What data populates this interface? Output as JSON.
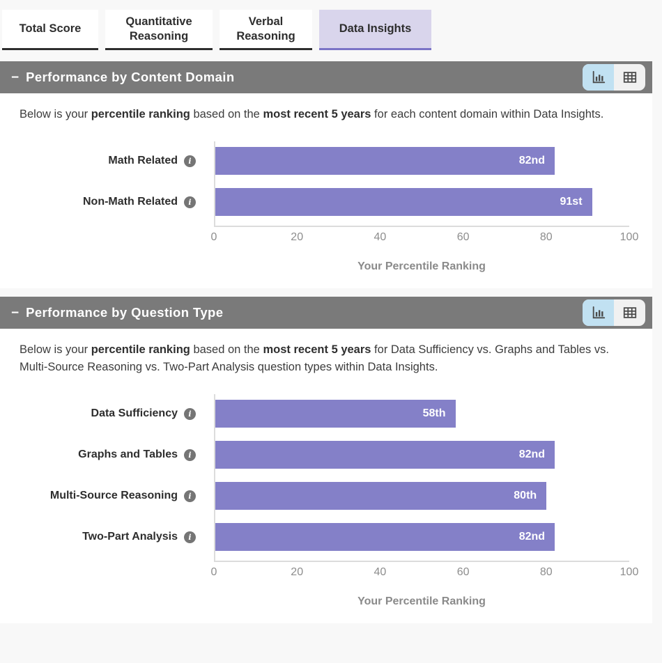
{
  "tabs": {
    "items": [
      {
        "label": "Total Score",
        "active": false
      },
      {
        "label": "Quantitative Reasoning",
        "active": false
      },
      {
        "label": "Verbal Reasoning",
        "active": false
      },
      {
        "label": "Data Insights",
        "active": true
      }
    ],
    "active_bg_color": "#d9d5ec",
    "active_border_color": "#7b74c6"
  },
  "sections": [
    {
      "collapse": "−",
      "title": "Performance by Content Domain",
      "intro": [
        {
          "text": "Below is your ",
          "bold": false
        },
        {
          "text": "percentile ranking",
          "bold": true
        },
        {
          "text": " based on the ",
          "bold": false
        },
        {
          "text": "most recent 5 years",
          "bold": true
        },
        {
          "text": " for each content domain within Data Insights.",
          "bold": false
        }
      ],
      "view_toggle": {
        "chart_view_active": true,
        "table_view_active": false
      }
    },
    {
      "collapse": "−",
      "title": "Performance by Question Type",
      "intro": [
        {
          "text": "Below is your ",
          "bold": false
        },
        {
          "text": "percentile ranking",
          "bold": true
        },
        {
          "text": " based on the ",
          "bold": false
        },
        {
          "text": "most recent 5 years",
          "bold": true
        },
        {
          "text": " for Data Sufficiency vs. Graphs and Tables vs. Multi-Source Reasoning vs. Two-Part Analysis question types within Data Insights.",
          "bold": false
        }
      ],
      "view_toggle": {
        "chart_view_active": true,
        "table_view_active": false
      }
    }
  ],
  "chart_data": [
    {
      "type": "bar",
      "orientation": "horizontal",
      "title": "Performance by Content Domain",
      "categories": [
        "Math Related",
        "Non-Math Related"
      ],
      "values": [
        82,
        91
      ],
      "value_labels": [
        "82nd",
        "91st"
      ],
      "xlabel": "Your Percentile Ranking",
      "xlim": [
        0,
        100
      ],
      "xticks": [
        0,
        20,
        40,
        60,
        80,
        100
      ],
      "bar_color": "#8480c8",
      "grid": false,
      "legend": false
    },
    {
      "type": "bar",
      "orientation": "horizontal",
      "title": "Performance by Question Type",
      "categories": [
        "Data Sufficiency",
        "Graphs and Tables",
        "Multi-Source Reasoning",
        "Two-Part Analysis"
      ],
      "values": [
        58,
        82,
        80,
        82
      ],
      "value_labels": [
        "58th",
        "82nd",
        "80th",
        "82nd"
      ],
      "xlabel": "Your Percentile Ranking",
      "xlim": [
        0,
        100
      ],
      "xticks": [
        0,
        20,
        40,
        60,
        80,
        100
      ],
      "bar_color": "#8480c8",
      "grid": false,
      "legend": false
    }
  ],
  "colors": {
    "header_bg": "#7a7a7a",
    "bar": "#8480c8",
    "toggle_active_bg": "#c1e1f2",
    "page_bg": "#f8f8f8"
  }
}
